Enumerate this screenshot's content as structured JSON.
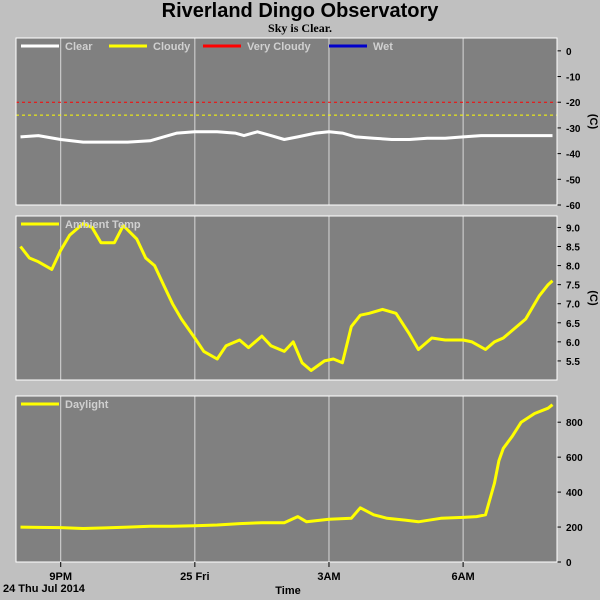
{
  "title": "Riverland Dingo Observatory",
  "subtitle": "Sky is Clear.",
  "colors": {
    "background": "#c0c0c0",
    "panel": "#808080",
    "clear": "#ffffff",
    "cloudy": "#ffff00",
    "very_cloudy": "#ff0000",
    "wet": "#0000cc",
    "series": "#ffff00"
  },
  "x_axis": {
    "label": "Time",
    "date_label": "24 Thu Jul 2014",
    "ticks": [
      {
        "label": "9PM",
        "t": 21.0
      },
      {
        "label": "25 Fri",
        "t": 24.0
      },
      {
        "label": "3AM",
        "t": 27.0
      },
      {
        "label": "6AM",
        "t": 30.0
      }
    ],
    "range": [
      20.0,
      32.1
    ]
  },
  "chart_data": [
    {
      "type": "line",
      "name": "sky",
      "legend": [
        {
          "label": "Clear",
          "color": "#ffffff"
        },
        {
          "label": "Cloudy",
          "color": "#ffff00"
        },
        {
          "label": "Very Cloudy",
          "color": "#ff0000"
        },
        {
          "label": "Wet",
          "color": "#0000cc"
        }
      ],
      "unit": "(C)",
      "ylim": [
        -60,
        5
      ],
      "yticks": [
        0,
        -10,
        -20,
        -30,
        -40,
        -50,
        -60
      ],
      "thresholds": [
        {
          "value": -20,
          "color": "#ff0000"
        },
        {
          "value": -25,
          "color": "#ffff00"
        }
      ],
      "series": [
        {
          "color": "#ffffff",
          "x": [
            20.1,
            20.5,
            21.0,
            21.5,
            22.0,
            22.5,
            23.0,
            23.3,
            23.6,
            24.0,
            24.5,
            24.9,
            25.1,
            25.4,
            25.7,
            26.0,
            26.3,
            26.7,
            27.0,
            27.3,
            27.6,
            28.0,
            28.4,
            28.8,
            29.2,
            29.6,
            30.0,
            30.4,
            30.8,
            31.2,
            31.6,
            32.0
          ],
          "values": [
            -33.5,
            -33.0,
            -34.5,
            -35.5,
            -35.5,
            -35.5,
            -35.0,
            -33.5,
            -32.0,
            -31.5,
            -31.5,
            -32.0,
            -33.0,
            -31.5,
            -33.0,
            -34.5,
            -33.5,
            -32.0,
            -31.5,
            -32.0,
            -33.5,
            -34.0,
            -34.5,
            -34.5,
            -34.0,
            -34.0,
            -33.5,
            -33.0,
            -33.0,
            -33.0,
            -33.0,
            -33.0
          ]
        }
      ]
    },
    {
      "type": "line",
      "name": "ambient",
      "legend": [
        {
          "label": "Ambient Temp",
          "color": "#ffff00"
        }
      ],
      "unit": "(C)",
      "ylim": [
        5.0,
        9.3
      ],
      "yticks": [
        9.0,
        8.5,
        8.0,
        7.5,
        7.0,
        6.5,
        6.0,
        5.5
      ],
      "series": [
        {
          "color": "#ffff00",
          "x": [
            20.1,
            20.3,
            20.5,
            20.8,
            21.0,
            21.2,
            21.5,
            21.7,
            21.9,
            22.2,
            22.4,
            22.7,
            22.9,
            23.1,
            23.3,
            23.5,
            23.7,
            24.0,
            24.2,
            24.5,
            24.7,
            25.0,
            25.2,
            25.5,
            25.7,
            26.0,
            26.2,
            26.4,
            26.6,
            26.9,
            27.1,
            27.3,
            27.5,
            27.7,
            27.9,
            28.2,
            28.5,
            28.8,
            29.0,
            29.3,
            29.6,
            29.8,
            30.0,
            30.2,
            30.5,
            30.7,
            30.9,
            31.1,
            31.4,
            31.7,
            31.9,
            32.0
          ],
          "values": [
            8.5,
            8.2,
            8.1,
            7.9,
            8.4,
            8.8,
            9.1,
            9.0,
            8.6,
            8.6,
            9.05,
            8.7,
            8.2,
            8.0,
            7.5,
            7.0,
            6.6,
            6.1,
            5.75,
            5.55,
            5.9,
            6.05,
            5.85,
            6.15,
            5.9,
            5.75,
            6.0,
            5.45,
            5.25,
            5.5,
            5.55,
            5.45,
            6.4,
            6.7,
            6.75,
            6.85,
            6.75,
            6.2,
            5.8,
            6.1,
            6.05,
            6.05,
            6.05,
            6.0,
            5.8,
            6.0,
            6.1,
            6.3,
            6.6,
            7.2,
            7.5,
            7.6
          ]
        }
      ]
    },
    {
      "type": "line",
      "name": "daylight",
      "legend": [
        {
          "label": "Daylight",
          "color": "#ffff00"
        }
      ],
      "ylim": [
        0,
        950
      ],
      "yticks": [
        800,
        600,
        400,
        200,
        0
      ],
      "series": [
        {
          "color": "#ffff00",
          "x": [
            20.1,
            20.5,
            21.0,
            21.5,
            22.0,
            22.5,
            23.0,
            23.5,
            24.0,
            24.5,
            25.0,
            25.5,
            26.0,
            26.3,
            26.5,
            27.0,
            27.5,
            27.7,
            28.0,
            28.3,
            28.7,
            29.0,
            29.5,
            30.0,
            30.3,
            30.5,
            30.7,
            30.8,
            30.9,
            31.1,
            31.3,
            31.6,
            31.9,
            32.0
          ],
          "values": [
            200,
            198,
            197,
            192,
            195,
            200,
            205,
            205,
            208,
            212,
            220,
            225,
            225,
            260,
            230,
            245,
            250,
            310,
            270,
            250,
            240,
            230,
            250,
            255,
            260,
            270,
            450,
            580,
            650,
            720,
            800,
            850,
            880,
            900
          ]
        }
      ]
    }
  ]
}
